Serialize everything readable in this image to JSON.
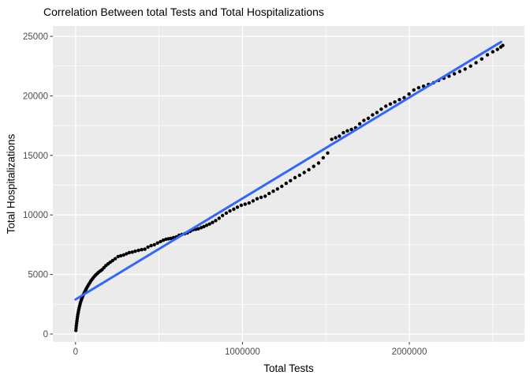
{
  "chart_data": {
    "type": "scatter",
    "title": "Correlation Between total Tests and Total Hospitalizations",
    "xlabel": "Total Tests",
    "ylabel": "Total Hospitalizations",
    "xlim": [
      -136000,
      2690000
    ],
    "ylim": [
      -663,
      25862
    ],
    "grid": true,
    "legend_position": "none",
    "x_major": [
      {
        "value": 0,
        "label": "0"
      },
      {
        "value": 1000000,
        "label": "1000000"
      },
      {
        "value": 2000000,
        "label": "2000000"
      }
    ],
    "x_minor": [
      500000,
      1500000,
      2500000
    ],
    "y_major": [
      {
        "value": 0,
        "label": "0"
      },
      {
        "value": 5000,
        "label": "5000"
      },
      {
        "value": 10000,
        "label": "10000"
      },
      {
        "value": 15000,
        "label": "15000"
      },
      {
        "value": 20000,
        "label": "20000"
      },
      {
        "value": 25000,
        "label": "25000"
      }
    ],
    "y_minor": [
      2500,
      7500,
      12500,
      17500,
      22500
    ],
    "trend_line": {
      "type": "linear",
      "x1": 0,
      "y1": 2900,
      "x2": 2550000,
      "y2": 24530
    },
    "colors": {
      "panel_bg": "#EBEBEB",
      "grid": "#FFFFFF",
      "point": "#000000",
      "trend": "#3366FF",
      "axis_text": "#4D4D4D",
      "tick_mark": "#333333",
      "title_text": "#000000"
    },
    "points": [
      [
        2000,
        300
      ],
      [
        3500,
        500
      ],
      [
        5000,
        700
      ],
      [
        6500,
        900
      ],
      [
        8000,
        1080
      ],
      [
        10000,
        1280
      ],
      [
        12000,
        1470
      ],
      [
        14000,
        1650
      ],
      [
        16500,
        1840
      ],
      [
        19000,
        2020
      ],
      [
        22000,
        2210
      ],
      [
        25000,
        2390
      ],
      [
        28000,
        2560
      ],
      [
        31500,
        2720
      ],
      [
        35000,
        2870
      ],
      [
        39000,
        3020
      ],
      [
        43000,
        3160
      ],
      [
        47000,
        3300
      ],
      [
        51500,
        3430
      ],
      [
        56000,
        3560
      ],
      [
        61000,
        3700
      ],
      [
        66000,
        3840
      ],
      [
        72000,
        3990
      ],
      [
        78000,
        4140
      ],
      [
        84000,
        4280
      ],
      [
        91000,
        4430
      ],
      [
        98000,
        4570
      ],
      [
        105000,
        4700
      ],
      [
        113000,
        4840
      ],
      [
        121000,
        4960
      ],
      [
        130000,
        5080
      ],
      [
        139000,
        5190
      ],
      [
        149000,
        5300
      ],
      [
        159000,
        5400
      ],
      [
        170000,
        5580
      ],
      [
        182000,
        5750
      ],
      [
        195000,
        5890
      ],
      [
        208000,
        6030
      ],
      [
        222000,
        6170
      ],
      [
        238000,
        6320
      ],
      [
        255000,
        6500
      ],
      [
        271000,
        6570
      ],
      [
        288000,
        6630
      ],
      [
        305000,
        6740
      ],
      [
        322000,
        6840
      ],
      [
        340000,
        6880
      ],
      [
        358000,
        6950
      ],
      [
        377000,
        7020
      ],
      [
        396000,
        7080
      ],
      [
        415000,
        7120
      ],
      [
        434000,
        7300
      ],
      [
        453000,
        7420
      ],
      [
        472000,
        7500
      ],
      [
        491000,
        7640
      ],
      [
        509000,
        7760
      ],
      [
        526000,
        7880
      ],
      [
        542000,
        7960
      ],
      [
        557000,
        8000
      ],
      [
        571000,
        8030
      ],
      [
        587000,
        8100
      ],
      [
        604000,
        8160
      ],
      [
        620000,
        8290
      ],
      [
        637000,
        8360
      ],
      [
        654000,
        8420
      ],
      [
        670000,
        8490
      ],
      [
        687000,
        8620
      ],
      [
        703000,
        8750
      ],
      [
        720000,
        8790
      ],
      [
        736000,
        8830
      ],
      [
        753000,
        8930
      ],
      [
        769000,
        9020
      ],
      [
        786000,
        9130
      ],
      [
        803000,
        9240
      ],
      [
        821000,
        9370
      ],
      [
        840000,
        9520
      ],
      [
        860000,
        9720
      ],
      [
        881000,
        9950
      ],
      [
        903000,
        10150
      ],
      [
        925000,
        10330
      ],
      [
        948000,
        10480
      ],
      [
        970000,
        10650
      ],
      [
        993000,
        10810
      ],
      [
        1016000,
        10900
      ],
      [
        1040000,
        11000
      ],
      [
        1064000,
        11180
      ],
      [
        1088000,
        11360
      ],
      [
        1112000,
        11480
      ],
      [
        1136000,
        11570
      ],
      [
        1160000,
        11800
      ],
      [
        1185000,
        11990
      ],
      [
        1210000,
        12180
      ],
      [
        1236000,
        12400
      ],
      [
        1262000,
        12650
      ],
      [
        1288000,
        12880
      ],
      [
        1315000,
        13130
      ],
      [
        1342000,
        13330
      ],
      [
        1370000,
        13560
      ],
      [
        1398000,
        13800
      ],
      [
        1427000,
        14080
      ],
      [
        1456000,
        14360
      ],
      [
        1484000,
        14800
      ],
      [
        1511000,
        15200
      ],
      [
        1535000,
        16350
      ],
      [
        1558000,
        16480
      ],
      [
        1581000,
        16620
      ],
      [
        1605000,
        16900
      ],
      [
        1629000,
        17060
      ],
      [
        1653000,
        17180
      ],
      [
        1678000,
        17320
      ],
      [
        1703000,
        17650
      ],
      [
        1728000,
        17940
      ],
      [
        1754000,
        18120
      ],
      [
        1780000,
        18400
      ],
      [
        1806000,
        18600
      ],
      [
        1832000,
        18880
      ],
      [
        1859000,
        19130
      ],
      [
        1886000,
        19320
      ],
      [
        1913000,
        19480
      ],
      [
        1941000,
        19680
      ],
      [
        1969000,
        19850
      ],
      [
        1998000,
        20150
      ],
      [
        2027000,
        20500
      ],
      [
        2056000,
        20680
      ],
      [
        2085000,
        20810
      ],
      [
        2115000,
        20960
      ],
      [
        2145000,
        21100
      ],
      [
        2176000,
        21300
      ],
      [
        2207000,
        21480
      ],
      [
        2238000,
        21650
      ],
      [
        2270000,
        21850
      ],
      [
        2302000,
        22050
      ],
      [
        2334000,
        22250
      ],
      [
        2367000,
        22500
      ],
      [
        2400000,
        22780
      ],
      [
        2434000,
        23100
      ],
      [
        2468000,
        23450
      ],
      [
        2500000,
        23700
      ],
      [
        2528000,
        23900
      ],
      [
        2548000,
        24100
      ],
      [
        2560000,
        24230
      ]
    ]
  }
}
